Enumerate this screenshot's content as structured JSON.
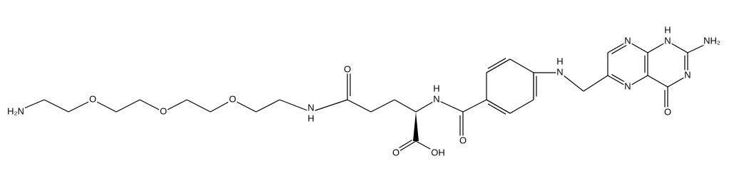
{
  "labels": [
    "H₂N",
    "O",
    "O",
    "O",
    "N",
    "H",
    "O",
    "N",
    "H",
    "O",
    "O",
    "OH",
    "N",
    "H",
    "N",
    "N",
    "N",
    "H",
    "NH₂",
    "N",
    "O"
  ]
}
